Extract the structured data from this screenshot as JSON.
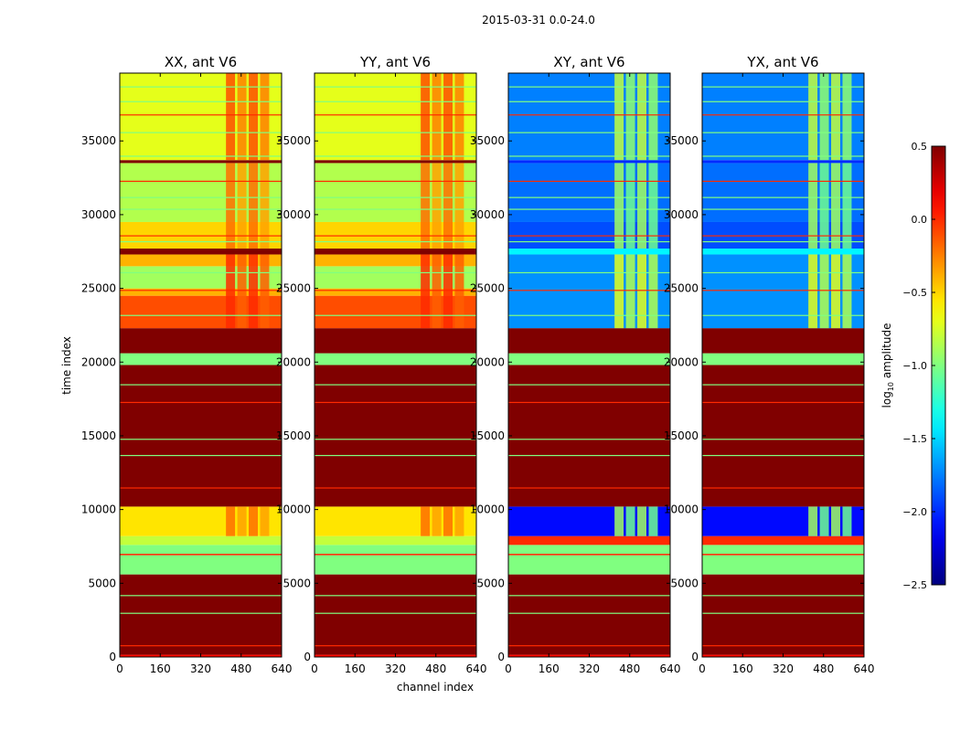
{
  "chart_data": {
    "type": "heatmap",
    "title": "2015-03-31 0.0-24.0",
    "xlabel": "channel index",
    "ylabel": "time index",
    "xlim": [
      0,
      640
    ],
    "ylim": [
      0,
      39600
    ],
    "xticks": [
      "0",
      "160",
      "320",
      "480",
      "640"
    ],
    "xtick_values": [
      0,
      160,
      320,
      480,
      640
    ],
    "yticks": [
      "0",
      "5000",
      "10000",
      "15000",
      "20000",
      "25000",
      "30000",
      "35000"
    ],
    "ytick_values": [
      0,
      5000,
      10000,
      15000,
      20000,
      25000,
      30000,
      35000
    ],
    "colormap": "jet",
    "colorbar": {
      "label_main": "log",
      "label_sub": "10",
      "label_rest": " amplitude",
      "range": [
        -2.5,
        0.5
      ],
      "ticks": [
        "0.5",
        "0.0",
        "−0.5",
        "−1.0",
        "−1.5",
        "−2.0",
        "−2.5"
      ],
      "tick_values": [
        0.5,
        0.0,
        -0.5,
        -1.0,
        -1.5,
        -2.0,
        -2.5
      ]
    },
    "rfi_channel_range": [
      420,
      600
    ],
    "panels": [
      {
        "title": "XX, ant V6",
        "kind": "parallel"
      },
      {
        "title": "YY, ant V6",
        "kind": "parallel"
      },
      {
        "title": "XY, ant V6",
        "kind": "cross"
      },
      {
        "title": "YX, ant V6",
        "kind": "cross"
      }
    ],
    "bands": {
      "parallel": [
        [
          0,
          150,
          0.1
        ],
        [
          150,
          5600,
          0.5
        ],
        [
          5600,
          6900,
          -1.0
        ],
        [
          6900,
          7000,
          0.0
        ],
        [
          7000,
          7600,
          -1.0
        ],
        [
          7600,
          8200,
          -0.8
        ],
        [
          8200,
          10200,
          -0.55
        ],
        [
          10200,
          19800,
          0.5
        ],
        [
          19800,
          20600,
          -1.0
        ],
        [
          20600,
          22300,
          0.5
        ],
        [
          22300,
          24500,
          -0.1
        ],
        [
          24500,
          25000,
          -0.4
        ],
        [
          25000,
          26500,
          -0.9
        ],
        [
          26500,
          27300,
          -0.4
        ],
        [
          27300,
          27700,
          0.5
        ],
        [
          27700,
          29500,
          -0.5
        ],
        [
          29500,
          33500,
          -0.85
        ],
        [
          33500,
          33700,
          0.5
        ],
        [
          33700,
          39600,
          -0.7
        ]
      ],
      "cross": [
        [
          0,
          150,
          0.1
        ],
        [
          150,
          5600,
          0.5
        ],
        [
          5600,
          6900,
          -1.0
        ],
        [
          6900,
          7000,
          0.0
        ],
        [
          7000,
          7600,
          -1.0
        ],
        [
          7600,
          8200,
          0.0
        ],
        [
          8200,
          10200,
          -2.1
        ],
        [
          10200,
          19800,
          0.5
        ],
        [
          19800,
          20600,
          -1.0
        ],
        [
          20600,
          22300,
          0.5
        ],
        [
          22300,
          27300,
          -1.7
        ],
        [
          27300,
          27700,
          -1.4
        ],
        [
          27700,
          29500,
          -1.9
        ],
        [
          29500,
          33500,
          -1.8
        ],
        [
          33500,
          33700,
          -2.0
        ],
        [
          33700,
          39600,
          -1.75
        ]
      ]
    },
    "lines": [
      800,
      3000,
      4200,
      11500,
      13700,
      14800,
      17300,
      18500,
      23200,
      24900,
      26100,
      28200,
      28600,
      30400,
      31200,
      32300,
      34000,
      35600,
      36800,
      37700,
      38700
    ],
    "rfi": {
      "parallel": [
        [
          8200,
          10200,
          -0.2
        ],
        [
          22300,
          27300,
          0.0
        ],
        [
          27700,
          33500,
          -0.2
        ],
        [
          33700,
          39600,
          -0.1
        ]
      ],
      "cross": [
        [
          8200,
          10200,
          -0.9
        ],
        [
          22300,
          27300,
          -0.7
        ],
        [
          27700,
          33500,
          -0.9
        ],
        [
          33700,
          39600,
          -0.8
        ]
      ]
    }
  }
}
